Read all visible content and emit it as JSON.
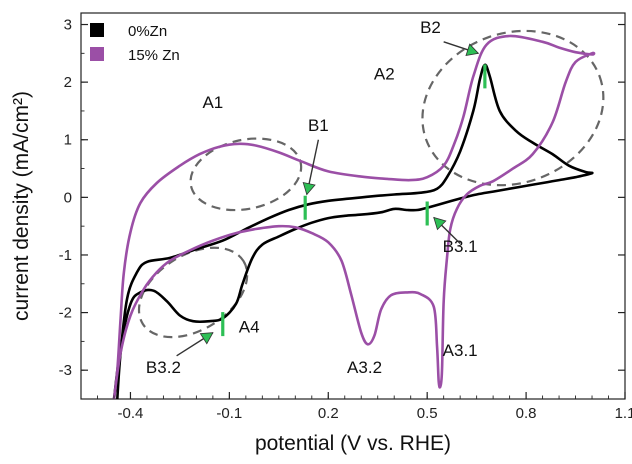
{
  "chart_data": {
    "type": "line",
    "xlabel": "potential (V vs. RHE)",
    "ylabel": "current density (mA/cm²)",
    "xlim": [
      -0.55,
      1.1
    ],
    "ylim": [
      -3.5,
      3.2
    ],
    "xticks": [
      -0.4,
      -0.1,
      0.2,
      0.5,
      0.8,
      1.1
    ],
    "xtick_labels": [
      "-0.4",
      "-0.1",
      "0.2",
      "0.5",
      "0.8",
      "1.1"
    ],
    "yticks": [
      -3,
      -2,
      -1,
      0,
      1,
      2,
      3
    ],
    "ytick_labels": [
      "-3",
      "-2",
      "-1",
      "0",
      "1",
      "2",
      "3"
    ],
    "grid": false,
    "legend": {
      "position": "top-left"
    },
    "series": [
      {
        "name": "0%Zn",
        "color": "#000000",
        "points": [
          [
            -0.45,
            -3.5
          ],
          [
            -0.43,
            -2.6
          ],
          [
            -0.4,
            -1.85
          ],
          [
            -0.37,
            -1.65
          ],
          [
            -0.33,
            -1.62
          ],
          [
            -0.29,
            -1.8
          ],
          [
            -0.25,
            -2.05
          ],
          [
            -0.21,
            -2.15
          ],
          [
            -0.16,
            -2.15
          ],
          [
            -0.12,
            -2.1
          ],
          [
            -0.08,
            -1.85
          ],
          [
            -0.06,
            -1.5
          ],
          [
            -0.03,
            -1.05
          ],
          [
            0.0,
            -0.82
          ],
          [
            0.05,
            -0.68
          ],
          [
            0.1,
            -0.55
          ],
          [
            0.15,
            -0.44
          ],
          [
            0.2,
            -0.36
          ],
          [
            0.25,
            -0.32
          ],
          [
            0.3,
            -0.3
          ],
          [
            0.36,
            -0.26
          ],
          [
            0.4,
            -0.2
          ],
          [
            0.44,
            -0.22
          ],
          [
            0.47,
            -0.22
          ],
          [
            0.5,
            -0.18
          ],
          [
            0.55,
            -0.1
          ],
          [
            0.6,
            -0.02
          ],
          [
            0.65,
            0.05
          ],
          [
            0.7,
            0.1
          ],
          [
            0.78,
            0.18
          ],
          [
            0.85,
            0.25
          ],
          [
            0.9,
            0.3
          ],
          [
            0.95,
            0.35
          ],
          [
            1.0,
            0.42
          ],
          [
            0.98,
            0.44
          ],
          [
            0.93,
            0.55
          ],
          [
            0.88,
            0.75
          ],
          [
            0.82,
            0.95
          ],
          [
            0.77,
            1.15
          ],
          [
            0.72,
            1.5
          ],
          [
            0.69,
            2.1
          ],
          [
            0.675,
            2.3
          ],
          [
            0.66,
            2.05
          ],
          [
            0.64,
            1.5
          ],
          [
            0.6,
            0.8
          ],
          [
            0.56,
            0.35
          ],
          [
            0.53,
            0.15
          ],
          [
            0.48,
            0.08
          ],
          [
            0.4,
            0.05
          ],
          [
            0.3,
            0.0
          ],
          [
            0.2,
            -0.06
          ],
          [
            0.14,
            -0.12
          ],
          [
            0.08,
            -0.22
          ],
          [
            0.02,
            -0.36
          ],
          [
            -0.05,
            -0.55
          ],
          [
            -0.12,
            -0.75
          ],
          [
            -0.2,
            -0.9
          ],
          [
            -0.28,
            -1.05
          ],
          [
            -0.35,
            -1.12
          ],
          [
            -0.38,
            -1.3
          ],
          [
            -0.41,
            -1.75
          ],
          [
            -0.43,
            -2.7
          ],
          [
            -0.44,
            -3.5
          ]
        ]
      },
      {
        "name": "15% Zn",
        "color": "#9b4fa6",
        "points": [
          [
            -0.45,
            -3.5
          ],
          [
            -0.43,
            -2.7
          ],
          [
            -0.4,
            -2.05
          ],
          [
            -0.36,
            -1.6
          ],
          [
            -0.32,
            -1.3
          ],
          [
            -0.28,
            -1.1
          ],
          [
            -0.22,
            -0.92
          ],
          [
            -0.15,
            -0.75
          ],
          [
            -0.08,
            -0.62
          ],
          [
            -0.02,
            -0.55
          ],
          [
            0.05,
            -0.5
          ],
          [
            0.1,
            -0.52
          ],
          [
            0.15,
            -0.62
          ],
          [
            0.2,
            -0.78
          ],
          [
            0.24,
            -1.1
          ],
          [
            0.27,
            -1.7
          ],
          [
            0.3,
            -2.35
          ],
          [
            0.32,
            -2.55
          ],
          [
            0.34,
            -2.4
          ],
          [
            0.36,
            -1.95
          ],
          [
            0.39,
            -1.7
          ],
          [
            0.44,
            -1.65
          ],
          [
            0.48,
            -1.68
          ],
          [
            0.52,
            -1.9
          ],
          [
            0.53,
            -2.6
          ],
          [
            0.535,
            -3.2
          ],
          [
            0.54,
            -3.28
          ],
          [
            0.545,
            -3.0
          ],
          [
            0.55,
            -1.8
          ],
          [
            0.56,
            -1.05
          ],
          [
            0.57,
            -0.55
          ],
          [
            0.59,
            -0.2
          ],
          [
            0.62,
            0.05
          ],
          [
            0.66,
            0.2
          ],
          [
            0.7,
            0.28
          ],
          [
            0.76,
            0.5
          ],
          [
            0.82,
            0.75
          ],
          [
            0.88,
            1.3
          ],
          [
            0.92,
            2.0
          ],
          [
            0.95,
            2.35
          ],
          [
            1.0,
            2.5
          ],
          [
            1.0,
            2.48
          ],
          [
            0.95,
            2.52
          ],
          [
            0.9,
            2.6
          ],
          [
            0.85,
            2.7
          ],
          [
            0.75,
            2.8
          ],
          [
            0.68,
            2.65
          ],
          [
            0.64,
            2.1
          ],
          [
            0.61,
            1.4
          ],
          [
            0.58,
            0.9
          ],
          [
            0.55,
            0.55
          ],
          [
            0.5,
            0.35
          ],
          [
            0.45,
            0.3
          ],
          [
            0.38,
            0.32
          ],
          [
            0.3,
            0.36
          ],
          [
            0.2,
            0.45
          ],
          [
            0.12,
            0.62
          ],
          [
            0.05,
            0.78
          ],
          [
            -0.02,
            0.9
          ],
          [
            -0.07,
            0.93
          ],
          [
            -0.13,
            0.88
          ],
          [
            -0.19,
            0.75
          ],
          [
            -0.25,
            0.55
          ],
          [
            -0.32,
            0.25
          ],
          [
            -0.37,
            -0.1
          ],
          [
            -0.4,
            -0.6
          ],
          [
            -0.42,
            -1.3
          ],
          [
            -0.43,
            -2.1
          ],
          [
            -0.44,
            -3.0
          ],
          [
            -0.45,
            -3.5
          ]
        ]
      }
    ],
    "markers": [
      {
        "label": "B1",
        "x": 0.13,
        "y": -0.18,
        "color": "#2dbf55"
      },
      {
        "label": "B2",
        "x": 0.675,
        "y": 2.1,
        "color": "#2dbf55"
      },
      {
        "label": "B3.1",
        "x": 0.5,
        "y": -0.28,
        "color": "#2dbf55"
      },
      {
        "label": "B3.2",
        "x": -0.12,
        "y": -2.2,
        "color": "#2dbf55"
      }
    ],
    "ellipses": [
      {
        "label": "A1",
        "cx": -0.05,
        "cy": 0.4,
        "rx": 0.17,
        "ry": 0.6,
        "rot": -12
      },
      {
        "label": "A2",
        "cx": 0.76,
        "cy": 1.55,
        "rx": 0.28,
        "ry": 1.3,
        "rot": -20
      },
      {
        "label": "A4",
        "cx": -0.21,
        "cy": -1.65,
        "rx": 0.18,
        "ry": 0.65,
        "rot": -32
      }
    ],
    "annotations": [
      {
        "text": "A1",
        "x": -0.15,
        "y": 1.55
      },
      {
        "text": "B1",
        "x": 0.17,
        "y": 1.15
      },
      {
        "text": "A2",
        "x": 0.37,
        "y": 2.05
      },
      {
        "text": "B2",
        "x": 0.51,
        "y": 2.85
      },
      {
        "text": "B3.1",
        "x": 0.6,
        "y": -0.95
      },
      {
        "text": "A4",
        "x": -0.04,
        "y": -2.35
      },
      {
        "text": "A3.2",
        "x": 0.31,
        "y": -3.05
      },
      {
        "text": "A3.1",
        "x": 0.6,
        "y": -2.75
      },
      {
        "text": "B3.2",
        "x": -0.3,
        "y": -3.05
      }
    ]
  }
}
